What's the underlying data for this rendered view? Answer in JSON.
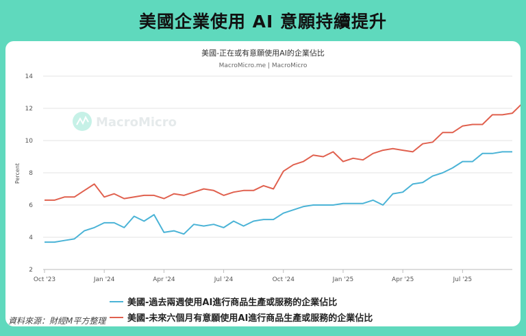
{
  "header": {
    "title": "美國企業使用 AI 意願持續提升"
  },
  "source_note": "資料來源：財經M平方整理",
  "watermark": "MacroMicro",
  "colors": {
    "background": "#5fd9bd",
    "series_past": "#4ab3d6",
    "series_future": "#e0604e"
  },
  "chart_data": {
    "type": "line",
    "title": "美國-正在或有意願使用AI的企業佔比",
    "subtitle": "MacroMicro.me | MacroMicro",
    "ylabel": "Percent",
    "xlabel": "",
    "ylim": [
      2,
      14
    ],
    "yticks": [
      2,
      4,
      6,
      8,
      10,
      12,
      14
    ],
    "x_ticks": [
      {
        "label": "Oct '23",
        "index": 0
      },
      {
        "label": "Jan '24",
        "index": 6
      },
      {
        "label": "Apr '24",
        "index": 12
      },
      {
        "label": "Jul '24",
        "index": 18
      },
      {
        "label": "Oct '24",
        "index": 24
      },
      {
        "label": "Jan '25",
        "index": 30
      },
      {
        "label": "Apr '25",
        "index": 36
      },
      {
        "label": "Jul '25",
        "index": 42
      }
    ],
    "grid": true,
    "legend_position": "bottom",
    "series": [
      {
        "name": "美國-過去兩週使用AI進行商品生產或服務的企業佔比",
        "color": "#4ab3d6",
        "values": [
          3.7,
          3.7,
          3.8,
          3.9,
          4.4,
          4.6,
          4.9,
          4.9,
          4.6,
          5.3,
          5.0,
          5.4,
          4.3,
          4.4,
          4.2,
          4.8,
          4.7,
          4.8,
          4.6,
          5.0,
          4.7,
          5.0,
          5.1,
          5.1,
          5.5,
          5.7,
          5.9,
          6.0,
          6.0,
          6.0,
          6.1,
          6.1,
          6.1,
          6.3,
          6.0,
          6.7,
          6.8,
          7.3,
          7.4,
          7.8,
          8.0,
          8.3,
          8.7,
          8.7,
          9.2,
          9.2,
          9.3,
          9.3
        ]
      },
      {
        "name": "美國-未來六個月有意願使用AI進行商品生產或服務的企業佔比",
        "color": "#e0604e",
        "values": [
          6.3,
          6.3,
          6.5,
          6.5,
          6.9,
          7.3,
          6.5,
          6.7,
          6.4,
          6.5,
          6.6,
          6.6,
          6.4,
          6.7,
          6.6,
          6.8,
          7.0,
          6.9,
          6.6,
          6.8,
          6.9,
          6.9,
          7.2,
          7.0,
          8.1,
          8.5,
          8.7,
          9.1,
          9.0,
          9.3,
          8.7,
          8.9,
          8.8,
          9.2,
          9.4,
          9.5,
          9.4,
          9.3,
          9.8,
          9.9,
          10.5,
          10.5,
          10.9,
          11.0,
          11.0,
          11.6,
          11.6,
          11.7,
          12.3
        ]
      }
    ]
  }
}
